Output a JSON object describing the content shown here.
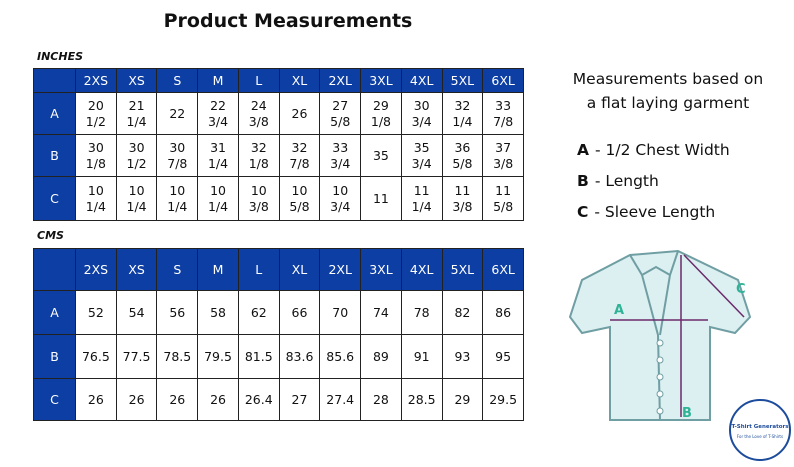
{
  "title": "Product Measurements",
  "tables": [
    {
      "label": "INCHES",
      "columns": [
        "2XS",
        "XS",
        "S",
        "M",
        "L",
        "XL",
        "2XL",
        "3XL",
        "4XL",
        "5XL",
        "6XL"
      ],
      "rows": [
        {
          "label": "A",
          "cells": [
            "20\n1/2",
            "21\n1/4",
            "22",
            "22\n3/4",
            "24\n3/8",
            "26",
            "27\n5/8",
            "29\n1/8",
            "30\n3/4",
            "32\n1/4",
            "33\n7/8"
          ]
        },
        {
          "label": "B",
          "cells": [
            "30\n1/8",
            "30\n1/2",
            "30\n7/8",
            "31\n1/4",
            "32\n1/8",
            "32\n7/8",
            "33\n3/4",
            "35",
            "35\n3/4",
            "36\n5/8",
            "37\n3/8"
          ]
        },
        {
          "label": "C",
          "cells": [
            "10\n1/4",
            "10\n1/4",
            "10\n1/4",
            "10\n1/4",
            "10\n3/8",
            "10\n5/8",
            "10\n3/4",
            "11",
            "11\n1/4",
            "11\n3/8",
            "11\n5/8"
          ]
        }
      ]
    },
    {
      "label": "CMS",
      "columns": [
        "2XS",
        "XS",
        "S",
        "M",
        "L",
        "XL",
        "2XL",
        "3XL",
        "4XL",
        "5XL",
        "6XL"
      ],
      "rows": [
        {
          "label": "A",
          "cells": [
            52,
            54,
            56,
            58,
            62,
            66,
            70,
            74,
            78,
            82,
            86
          ]
        },
        {
          "label": "B",
          "cells": [
            76.5,
            77.5,
            78.5,
            79.5,
            81.5,
            83.6,
            85.6,
            89,
            91,
            93,
            95
          ]
        },
        {
          "label": "C",
          "cells": [
            26,
            26,
            26,
            26,
            26.4,
            27,
            27.4,
            28,
            28.5,
            29,
            29.5
          ]
        }
      ]
    }
  ],
  "notes": {
    "heading": [
      "Measurements based on",
      "a flat laying garment"
    ],
    "items": [
      {
        "key": "A",
        "text": "- 1/2 Chest Width"
      },
      {
        "key": "B",
        "text": "- Length"
      },
      {
        "key": "C",
        "text": "- Sleeve Length"
      }
    ]
  },
  "diagram": {
    "labels": [
      "A",
      "B",
      "C"
    ]
  },
  "logo": {
    "name": "T-Shirt Generators",
    "tagline": "For the Love of T-Shirts"
  }
}
